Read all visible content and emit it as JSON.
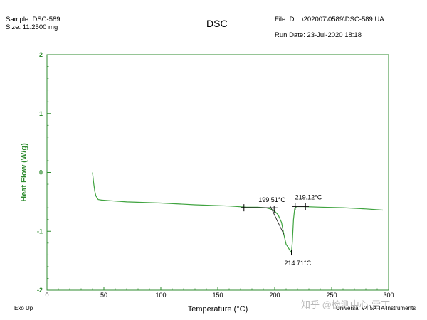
{
  "header": {
    "sample": "Sample: DSC-589",
    "size": "Size:  11.2500 mg",
    "title": "DSC",
    "file": "File: D:...\\202007\\0589\\DSC-589.UA",
    "run_date": "Run Date: 23-Jul-2020 18:18"
  },
  "footer": {
    "exo": "Exo Up",
    "instrument": "Universal V4.5A TA Instruments",
    "watermark": "知乎 @检测中心-雷丁"
  },
  "colors": {
    "axis": "#2e8b2e",
    "curve": "#3fa33f",
    "annotation": "#000000",
    "ylabel": "#2e8b2e"
  },
  "chart_data": {
    "type": "line",
    "title": "DSC",
    "xlabel": "Temperature (°C)",
    "ylabel": "Heat Flow (W/g)",
    "xlim": [
      0,
      300
    ],
    "ylim": [
      -2,
      2
    ],
    "xticks": [
      0,
      50,
      100,
      150,
      200,
      250,
      300
    ],
    "yticks": [
      -2,
      -1,
      0,
      1,
      2
    ],
    "xtick_labels": [
      "0",
      "50",
      "100",
      "150",
      "200",
      "250",
      "300"
    ],
    "ytick_labels": [
      "-2",
      "-1",
      "0",
      "1",
      "2"
    ],
    "grid": false,
    "series": [
      {
        "x": [
          40,
          41,
          42,
          43,
          45,
          48,
          55,
          70,
          100,
          130,
          160,
          175,
          185,
          192,
          196,
          199.5,
          203,
          206,
          208,
          210,
          212,
          213.5,
          214.71,
          215.5,
          216.5,
          217.5,
          219.12,
          225,
          240,
          260,
          280,
          295
        ],
        "y": [
          0.0,
          -0.18,
          -0.32,
          -0.4,
          -0.46,
          -0.47,
          -0.48,
          -0.5,
          -0.52,
          -0.55,
          -0.57,
          -0.59,
          -0.59,
          -0.6,
          -0.62,
          -0.65,
          -0.72,
          -0.85,
          -1.05,
          -1.22,
          -1.28,
          -1.33,
          -1.36,
          -1.18,
          -0.8,
          -0.62,
          -0.58,
          -0.58,
          -0.59,
          -0.6,
          -0.62,
          -0.64
        ]
      }
    ],
    "annotations": [
      {
        "text": "199.51°C",
        "x": 199.51,
        "y": -0.62
      },
      {
        "text": "219.12°C",
        "x": 219.12,
        "y": -0.58
      },
      {
        "text": "214.71°C",
        "x": 214.71,
        "y": -1.36
      }
    ],
    "baseline_markers": [
      {
        "x": 173,
        "y": -0.6
      },
      {
        "x": 199.5,
        "y": -0.63
      },
      {
        "x": 218,
        "y": -0.58
      },
      {
        "x": 227,
        "y": -0.58
      }
    ]
  }
}
